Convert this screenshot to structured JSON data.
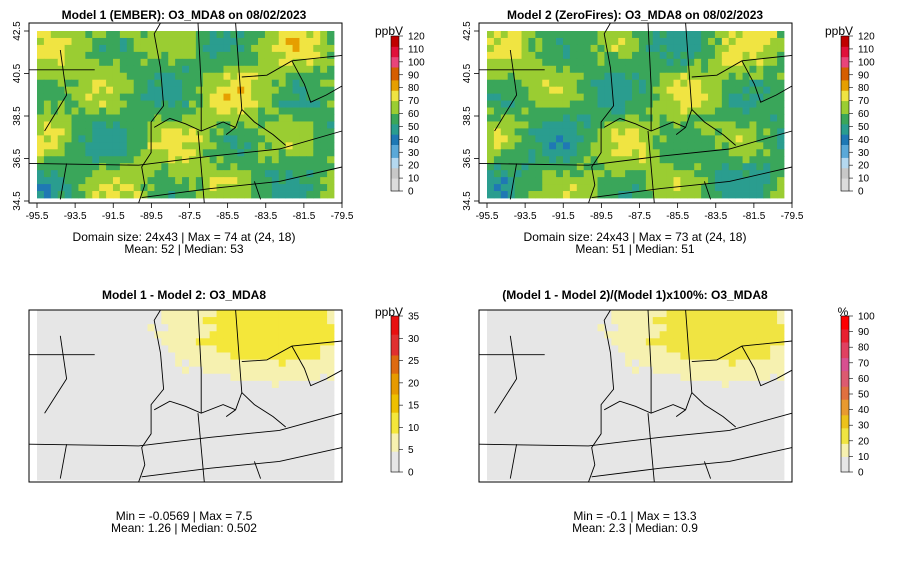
{
  "chart_data": [
    {
      "type": "heatmap",
      "title": "Model 1 (EMBER): O3_MDA8 on 08/02/2023",
      "x_ticks": [
        "-95.5",
        "-93.5",
        "-91.5",
        "-89.5",
        "-87.5",
        "-85.5",
        "-83.5",
        "-81.5",
        "-79.5"
      ],
      "y_ticks": [
        "34.5",
        "36.5",
        "38.5",
        "40.5",
        "42.5"
      ],
      "xlim": [
        -95.5,
        -79.5
      ],
      "ylim": [
        34.5,
        42.5
      ],
      "grid_size": [
        24,
        43
      ],
      "colorbar": {
        "unit": "ppbV",
        "ticks": [
          "0",
          "10",
          "20",
          "30",
          "40",
          "50",
          "60",
          "70",
          "80",
          "90",
          "100",
          "110",
          "120"
        ],
        "range": [
          0,
          120
        ]
      },
      "stats": [
        "Domain size: 24x43 | Max = 74 at (24, 18)",
        "Mean: 52 |  Median: 53"
      ],
      "mean": 52
    },
    {
      "type": "heatmap",
      "title": "Model 2 (ZeroFires): O3_MDA8 on 08/02/2023",
      "x_ticks": [
        "-95.5",
        "-93.5",
        "-91.5",
        "-89.5",
        "-87.5",
        "-85.5",
        "-83.5",
        "-81.5",
        "-79.5"
      ],
      "y_ticks": [
        "34.5",
        "36.5",
        "38.5",
        "40.5",
        "42.5"
      ],
      "xlim": [
        -95.5,
        -79.5
      ],
      "ylim": [
        34.5,
        42.5
      ],
      "grid_size": [
        24,
        43
      ],
      "colorbar": {
        "unit": "ppbV",
        "ticks": [
          "0",
          "10",
          "20",
          "30",
          "40",
          "50",
          "60",
          "70",
          "80",
          "90",
          "100",
          "110",
          "120"
        ],
        "range": [
          0,
          120
        ]
      },
      "stats": [
        "Domain size: 24x43 | Max = 73 at (24, 18)",
        "Mean: 51 |  Median: 51"
      ],
      "mean": 51
    },
    {
      "type": "heatmap",
      "title": "Model 1 - Model 2: O3_MDA8",
      "x_ticks": [],
      "y_ticks": [],
      "colorbar": {
        "unit": "ppbV",
        "ticks": [
          "0",
          "5",
          "10",
          "15",
          "20",
          "25",
          "30",
          "35"
        ],
        "range": [
          0,
          35
        ]
      },
      "stats": [
        "",
        "Min = -0.0569 | Max = 7.5",
        "Mean: 1.26 |  Median: 0.502"
      ],
      "mean": 1.26
    },
    {
      "type": "heatmap",
      "title": "(Model 1 - Model 2)/(Model 1)x100%: O3_MDA8",
      "x_ticks": [],
      "y_ticks": [],
      "colorbar": {
        "unit": "%",
        "ticks": [
          "0",
          "10",
          "20",
          "30",
          "40",
          "50",
          "60",
          "70",
          "80",
          "90",
          "100"
        ],
        "range": [
          0,
          100
        ]
      },
      "stats": [
        "",
        "Min = -0.1 | Max = 13.3",
        "Mean: 2.3 |  Median: 0.9"
      ],
      "mean": 2.3
    }
  ],
  "colors": {
    "conc_scale": [
      "#dcdcdc",
      "#c8c8c8",
      "#b4d8f0",
      "#5aa8d8",
      "#1f78b4",
      "#2a9d8f",
      "#3aa65a",
      "#9acd32",
      "#f0e442",
      "#e69f00",
      "#d55e00",
      "#e8457a",
      "#e0103a",
      "#c00000"
    ],
    "diff_scale": [
      "#e6e6e6",
      "#f6f1b0",
      "#f4e73a",
      "#eec000",
      "#e69a00",
      "#de6a10",
      "#e03030",
      "#e81010"
    ],
    "pct_scale": [
      "#e6e6e6",
      "#f6f1b0",
      "#f0e442",
      "#ecc21a",
      "#e89a30",
      "#e07040",
      "#dc5a70",
      "#d85090",
      "#e04060",
      "#e82030",
      "#ff0000"
    ]
  }
}
